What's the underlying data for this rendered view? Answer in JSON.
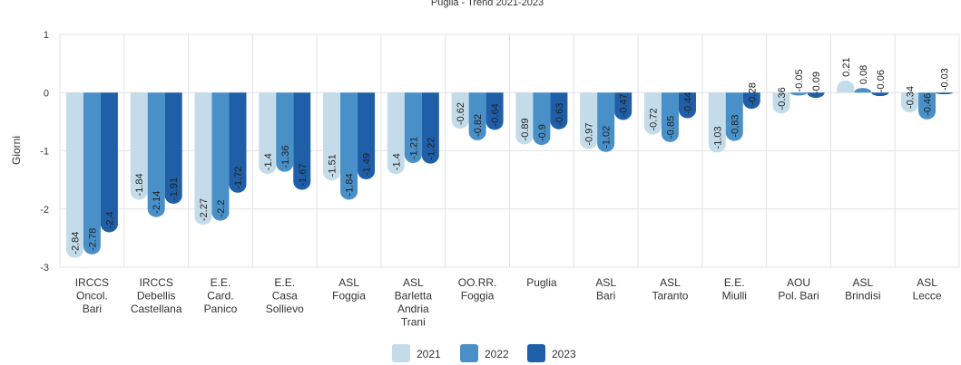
{
  "chart_data": {
    "type": "bar",
    "title": "Puglia - Trend 2021-2023",
    "ylabel": "Giorni",
    "ylim": [
      -3,
      1
    ],
    "yticks": [
      1,
      0,
      -1,
      -2,
      -3
    ],
    "grid": true,
    "legend_position": "bottom",
    "categories": [
      [
        "IRCCS",
        "Oncol.",
        "Bari"
      ],
      [
        "IRCCS",
        "Debellis",
        "Castellana"
      ],
      [
        "E.E.",
        "Card.",
        "Panico"
      ],
      [
        "E.E.",
        "Casa",
        "Sollievo"
      ],
      [
        "ASL",
        "Foggia"
      ],
      [
        "ASL",
        "Barletta",
        "Andria",
        "Trani"
      ],
      [
        "OO.RR.",
        "Foggia"
      ],
      [
        "Puglia"
      ],
      [
        "ASL",
        "Bari"
      ],
      [
        "ASL",
        "Taranto"
      ],
      [
        "E.E.",
        "Miulli"
      ],
      [
        "AOU",
        "Pol. Bari"
      ],
      [
        "ASL",
        "Brindisi"
      ],
      [
        "ASL",
        "Lecce"
      ]
    ],
    "series": [
      {
        "name": "2021",
        "color": "#c4dcea",
        "values": [
          -2.84,
          -1.84,
          -2.27,
          -1.4,
          -1.51,
          -1.4,
          -0.62,
          -0.89,
          -0.97,
          -0.72,
          -1.03,
          -0.36,
          0.21,
          -0.34
        ]
      },
      {
        "name": "2022",
        "color": "#4a90c8",
        "values": [
          -2.78,
          -2.14,
          -2.2,
          -1.36,
          -1.84,
          -1.21,
          -0.82,
          -0.9,
          -1.02,
          -0.85,
          -0.83,
          -0.05,
          0.08,
          -0.46
        ]
      },
      {
        "name": "2023",
        "color": "#1f5fa8",
        "values": [
          -2.4,
          -1.91,
          -1.72,
          -1.67,
          -1.49,
          -1.22,
          -0.64,
          -0.63,
          -0.47,
          -0.44,
          -0.28,
          -0.09,
          -0.06,
          -0.03
        ]
      }
    ]
  }
}
